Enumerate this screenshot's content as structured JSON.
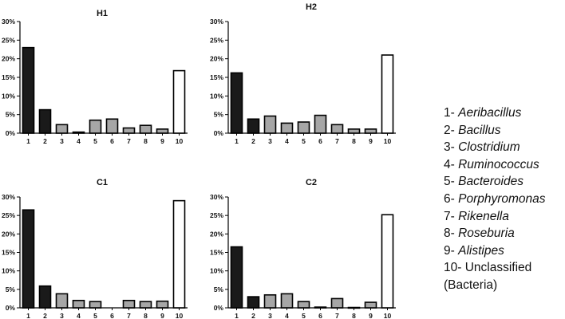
{
  "chart_data": [
    {
      "type": "bar",
      "title": "H1",
      "categories": [
        "1",
        "2",
        "3",
        "4",
        "5",
        "6",
        "7",
        "8",
        "9",
        "10"
      ],
      "values": [
        23.0,
        6.3,
        2.3,
        0.3,
        3.5,
        3.8,
        1.4,
        2.1,
        1.1,
        16.8
      ],
      "yticks": [
        "0%",
        "5%",
        "10%",
        "15%",
        "20%",
        "25%",
        "30%"
      ],
      "ylim": [
        0,
        30
      ],
      "grid": false
    },
    {
      "type": "bar",
      "title": "H2",
      "categories": [
        "1",
        "2",
        "3",
        "4",
        "5",
        "6",
        "7",
        "8",
        "9",
        "10"
      ],
      "values": [
        16.2,
        3.8,
        4.6,
        2.7,
        3.0,
        4.8,
        2.3,
        1.1,
        1.1,
        21.0
      ],
      "yticks": [
        "0%",
        "5%",
        "10%",
        "15%",
        "20%",
        "25%",
        "30%"
      ],
      "ylim": [
        0,
        30
      ],
      "grid": false
    },
    {
      "type": "bar",
      "title": "C1",
      "categories": [
        "1",
        "2",
        "3",
        "4",
        "5",
        "6",
        "7",
        "8",
        "9",
        "10"
      ],
      "values": [
        26.5,
        5.9,
        3.8,
        2.0,
        1.7,
        0.0,
        2.0,
        1.7,
        1.8,
        29.0
      ],
      "yticks": [
        "0%",
        "5%",
        "10%",
        "15%",
        "20%",
        "25%",
        "30%"
      ],
      "ylim": [
        0,
        30
      ],
      "grid": false
    },
    {
      "type": "bar",
      "title": "C2",
      "categories": [
        "1",
        "2",
        "3",
        "4",
        "5",
        "6",
        "7",
        "8",
        "9",
        "10"
      ],
      "values": [
        16.5,
        3.0,
        3.5,
        3.8,
        1.7,
        0.2,
        2.5,
        0.1,
        1.5,
        25.2
      ],
      "yticks": [
        "0%",
        "5%",
        "10%",
        "15%",
        "20%",
        "25%",
        "30%"
      ],
      "ylim": [
        0,
        30
      ],
      "grid": false
    }
  ],
  "bar_colors": {
    "dominant": "#1a1a1a",
    "other": "#a6a6a6",
    "unclassified": "#ffffff",
    "outline": "#000000"
  },
  "legend": {
    "items": [
      {
        "num": "1-",
        "name": "Aeribacillus"
      },
      {
        "num": "2-",
        "name": "Bacillus"
      },
      {
        "num": "3-",
        "name": "Clostridium"
      },
      {
        "num": "4-",
        "name": "Ruminococcus"
      },
      {
        "num": "5-",
        "name": "Bacteroides"
      },
      {
        "num": "6-",
        "name": "Porphyromonas"
      },
      {
        "num": "7-",
        "name": "Rikenella"
      },
      {
        "num": "8-",
        "name": "Roseburia"
      },
      {
        "num": "9-",
        "name": "Alistipes"
      }
    ],
    "last": {
      "num": "10-",
      "text": "Unclassified",
      "paren_open": "(",
      "paren_name": "Bacteria",
      "paren_close": ")"
    }
  }
}
